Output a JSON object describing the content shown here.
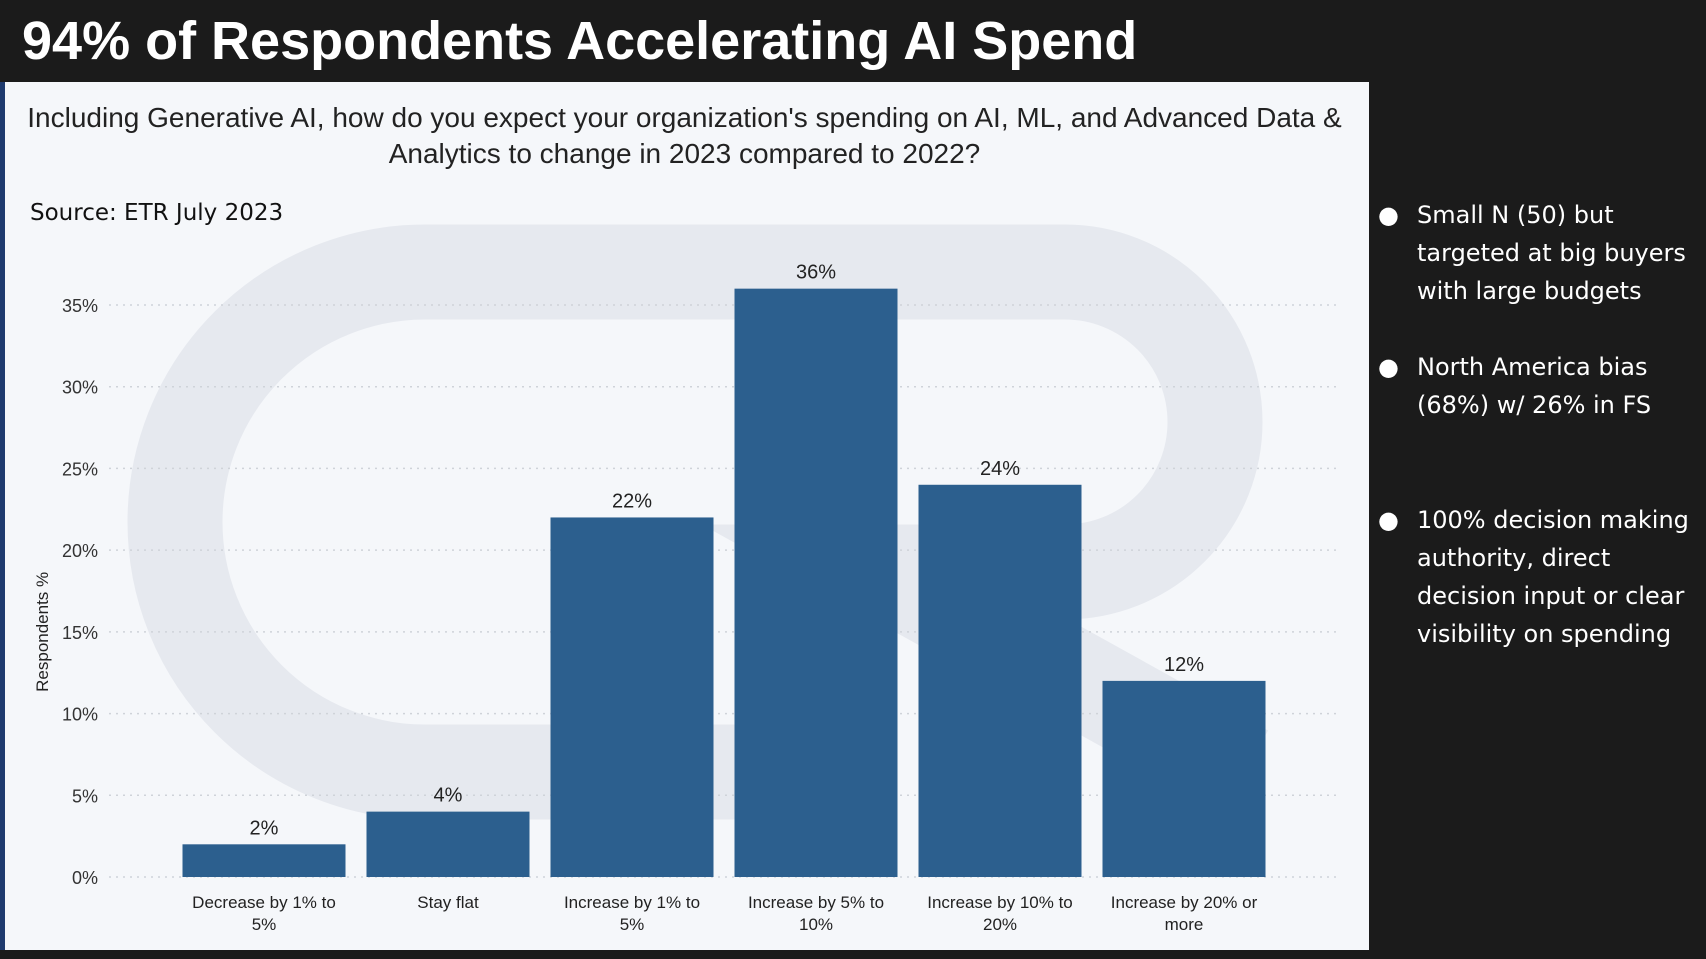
{
  "slide_title": "94% of Respondents Accelerating AI Spend",
  "chart_data": {
    "type": "bar",
    "title": "Including Generative AI, how do you expect your organization's spending on AI, ML, and Advanced Data & Analytics to change in 2023 compared to 2022?",
    "source": "Source: ETR July 2023",
    "xlabel": "",
    "ylabel": "Respondents %",
    "ylim": [
      0,
      37
    ],
    "yticks": [
      0,
      5,
      10,
      15,
      20,
      25,
      30,
      35
    ],
    "ytick_labels": [
      "0%",
      "5%",
      "10%",
      "15%",
      "20%",
      "25%",
      "30%",
      "35%"
    ],
    "grid": "horizontal dotted",
    "categories": [
      [
        "Decrease by 1% to",
        "5%"
      ],
      [
        "Stay flat"
      ],
      [
        "Increase by 1% to",
        "5%"
      ],
      [
        "Increase by 5% to",
        "10%"
      ],
      [
        "Increase by 10% to",
        "20%"
      ],
      [
        "Increase by 20% or",
        "more"
      ]
    ],
    "values": [
      2,
      4,
      22,
      36,
      24,
      12
    ],
    "data_labels": [
      "2%",
      "4%",
      "22%",
      "36%",
      "24%",
      "12%"
    ],
    "bar_color": "#2c5f8e"
  },
  "bullets": [
    "Small N (50) but targeted at big buyers with large budgets",
    "North America bias (68%) w/ 26% in FS",
    "100% decision making authority, direct decision input or clear visibility on spending"
  ]
}
